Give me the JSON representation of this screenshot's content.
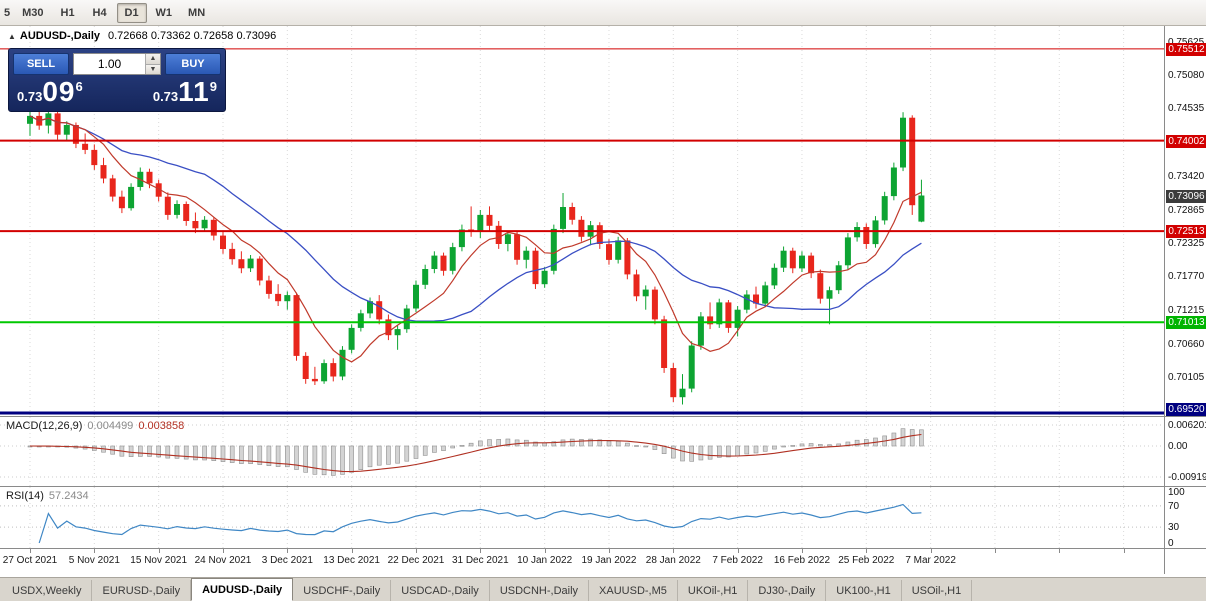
{
  "toolbar": {
    "items": [
      "5",
      "M30",
      "H1",
      "H4",
      "D1",
      "W1",
      "MN"
    ],
    "active": "D1"
  },
  "chart_header": {
    "collapse_icon": "▲",
    "title": "AUDUSD-,Daily",
    "ohlc": "0.72668 0.73362 0.72658 0.73096"
  },
  "icons": {
    "volume_up": "▲",
    "volume_down": "▼"
  },
  "trade_panel": {
    "sell_label": "SELL",
    "buy_label": "BUY",
    "volume": "1.00",
    "sell_price": {
      "small": "0.73",
      "big": "09",
      "sup": "6"
    },
    "buy_price": {
      "small": "0.73",
      "big": "11",
      "sup": "9"
    }
  },
  "price_axis": {
    "ticks": [
      {
        "label": "0.75625",
        "value": 0.75625
      },
      {
        "label": "0.75080",
        "value": 0.7508
      },
      {
        "label": "0.74535",
        "value": 0.74535
      },
      {
        "label": "0.73420",
        "value": 0.7342
      },
      {
        "label": "0.72865",
        "value": 0.72865
      },
      {
        "label": "0.72325",
        "value": 0.72325
      },
      {
        "label": "0.71770",
        "value": 0.7177
      },
      {
        "label": "0.71215",
        "value": 0.71215
      },
      {
        "label": "0.70660",
        "value": 0.7066
      },
      {
        "label": "0.70105",
        "value": 0.70105
      }
    ],
    "badges": [
      {
        "label": "0.75512",
        "value": 0.75512,
        "bg": "#d20000"
      },
      {
        "label": "0.74002",
        "value": 0.74002,
        "bg": "#d20000"
      },
      {
        "label": "0.73096",
        "value": 0.73096,
        "bg": "#3c3c3c"
      },
      {
        "label": "0.72513",
        "value": 0.72513,
        "bg": "#d20000"
      },
      {
        "label": "0.71013",
        "value": 0.71013,
        "bg": "#00b400"
      },
      {
        "label": "0.69520",
        "value": 0.6952,
        "bg": "#000080"
      }
    ]
  },
  "macd": {
    "name": "MACD(12,26,9)",
    "value_main": "0.004499",
    "value_signal": "0.003858",
    "axis": [
      {
        "label": "0.006201",
        "value": 0.006201
      },
      {
        "label": "0.00",
        "value": 0
      },
      {
        "label": "-0.00919",
        "value": -0.00919
      }
    ]
  },
  "rsi": {
    "name": "RSI(14)",
    "value": "57.2434",
    "axis": [
      {
        "label": "100",
        "value": 100
      },
      {
        "label": "70",
        "value": 70
      },
      {
        "label": "30",
        "value": 30
      },
      {
        "label": "0",
        "value": 0
      }
    ],
    "levels": [
      70,
      30
    ]
  },
  "time_axis": {
    "labels": [
      "27 Oct 2021",
      "5 Nov 2021",
      "15 Nov 2021",
      "24 Nov 2021",
      "3 Dec 2021",
      "13 Dec 2021",
      "22 Dec 2021",
      "31 Dec 2021",
      "10 Jan 2022",
      "19 Jan 2022",
      "28 Jan 2022",
      "7 Feb 2022",
      "16 Feb 2022",
      "25 Feb 2022",
      "7 Mar 2022"
    ]
  },
  "tabs": {
    "items": [
      "USDX,Weekly",
      "EURUSD-,Daily",
      "AUDUSD-,Daily",
      "USDCHF-,Daily",
      "USDCAD-,Daily",
      "USDCNH-,Daily",
      "XAUUSD-,M5",
      "UKOil-,H1",
      "DJ30-,Daily",
      "UK100-,H1",
      "USOil-,H1"
    ],
    "active_index": 2
  },
  "chart_data": {
    "type": "candlestick",
    "title": "AUDUSD-,Daily",
    "current_price": 0.73096,
    "current_bar_ohlc": [
      0.72668,
      0.73362,
      0.72658,
      0.73096
    ],
    "visible_price_range": [
      0.6947,
      0.7589
    ],
    "x_labels": [
      "27 Oct 2021",
      "5 Nov 2021",
      "15 Nov 2021",
      "24 Nov 2021",
      "3 Dec 2021",
      "13 Dec 2021",
      "22 Dec 2021",
      "31 Dec 2021",
      "10 Jan 2022",
      "19 Jan 2022",
      "28 Jan 2022",
      "7 Feb 2022",
      "16 Feb 2022",
      "25 Feb 2022",
      "7 Mar 2022"
    ],
    "hlines": [
      {
        "value": 0.75512,
        "color": "#d20000",
        "width": 1
      },
      {
        "value": 0.74002,
        "color": "#d20000",
        "width": 2
      },
      {
        "value": 0.72513,
        "color": "#d20000",
        "width": 2
      },
      {
        "value": 0.71013,
        "color": "#00c800",
        "width": 2
      },
      {
        "value": 0.6952,
        "color": "#000080",
        "width": 3
      }
    ],
    "indicators": {
      "macd_label": "MACD(12,26,9)",
      "macd_current": [
        0.004499,
        0.003858
      ],
      "macd_axis_range": [
        0.006201,
        -0.00919
      ],
      "rsi_label": "RSI(14)",
      "rsi_current": 57.2434
    },
    "candles_ohlc": [
      [
        0.7428,
        0.7448,
        0.7408,
        0.7441
      ],
      [
        0.7441,
        0.7455,
        0.7418,
        0.7425
      ],
      [
        0.7425,
        0.7452,
        0.7412,
        0.7445
      ],
      [
        0.7445,
        0.745,
        0.7402,
        0.741
      ],
      [
        0.741,
        0.7432,
        0.74,
        0.7426
      ],
      [
        0.7426,
        0.743,
        0.7388,
        0.7395
      ],
      [
        0.7395,
        0.7412,
        0.7378,
        0.7385
      ],
      [
        0.7385,
        0.7394,
        0.7352,
        0.736
      ],
      [
        0.736,
        0.7372,
        0.733,
        0.7338
      ],
      [
        0.7338,
        0.7344,
        0.73,
        0.7308
      ],
      [
        0.7308,
        0.7318,
        0.7281,
        0.7289
      ],
      [
        0.7289,
        0.733,
        0.7285,
        0.7324
      ],
      [
        0.7324,
        0.7356,
        0.7318,
        0.7349
      ],
      [
        0.7349,
        0.7354,
        0.7322,
        0.733
      ],
      [
        0.733,
        0.7336,
        0.73,
        0.7308
      ],
      [
        0.7308,
        0.7315,
        0.727,
        0.7278
      ],
      [
        0.7278,
        0.7302,
        0.7272,
        0.7296
      ],
      [
        0.7296,
        0.73,
        0.726,
        0.7268
      ],
      [
        0.7268,
        0.7282,
        0.7248,
        0.7256
      ],
      [
        0.7256,
        0.7276,
        0.725,
        0.727
      ],
      [
        0.727,
        0.7274,
        0.7236,
        0.7244
      ],
      [
        0.7244,
        0.7252,
        0.7214,
        0.7222
      ],
      [
        0.7222,
        0.7232,
        0.7196,
        0.7205
      ],
      [
        0.7205,
        0.7218,
        0.7182,
        0.719
      ],
      [
        0.719,
        0.7212,
        0.7184,
        0.7206
      ],
      [
        0.7206,
        0.721,
        0.7162,
        0.717
      ],
      [
        0.717,
        0.7178,
        0.714,
        0.7148
      ],
      [
        0.7148,
        0.7164,
        0.7128,
        0.7136
      ],
      [
        0.7136,
        0.7152,
        0.7122,
        0.7146
      ],
      [
        0.7146,
        0.715,
        0.7038,
        0.7046
      ],
      [
        0.7046,
        0.7052,
        0.7,
        0.7008
      ],
      [
        0.7008,
        0.7028,
        0.6998,
        0.7004
      ],
      [
        0.7004,
        0.704,
        0.7,
        0.7034
      ],
      [
        0.7034,
        0.7042,
        0.7004,
        0.7012
      ],
      [
        0.7012,
        0.7062,
        0.7006,
        0.7056
      ],
      [
        0.7056,
        0.7098,
        0.705,
        0.7092
      ],
      [
        0.7092,
        0.7122,
        0.7086,
        0.7116
      ],
      [
        0.7116,
        0.7142,
        0.7108,
        0.7136
      ],
      [
        0.7136,
        0.7146,
        0.7098,
        0.7106
      ],
      [
        0.7106,
        0.7114,
        0.7072,
        0.708
      ],
      [
        0.708,
        0.7096,
        0.7056,
        0.709
      ],
      [
        0.709,
        0.713,
        0.7084,
        0.7124
      ],
      [
        0.7124,
        0.717,
        0.7118,
        0.7163
      ],
      [
        0.7163,
        0.7196,
        0.7156,
        0.7189
      ],
      [
        0.7189,
        0.7218,
        0.7182,
        0.7211
      ],
      [
        0.7211,
        0.7216,
        0.7178,
        0.7186
      ],
      [
        0.7186,
        0.7232,
        0.718,
        0.7225
      ],
      [
        0.7225,
        0.7262,
        0.7218,
        0.7254
      ],
      [
        0.7254,
        0.7292,
        0.7242,
        0.7251
      ],
      [
        0.7251,
        0.7286,
        0.724,
        0.7278
      ],
      [
        0.7278,
        0.7292,
        0.7252,
        0.726
      ],
      [
        0.726,
        0.7268,
        0.7222,
        0.723
      ],
      [
        0.723,
        0.7252,
        0.7218,
        0.7246
      ],
      [
        0.7246,
        0.725,
        0.7196,
        0.7204
      ],
      [
        0.7204,
        0.7226,
        0.719,
        0.7219
      ],
      [
        0.7219,
        0.7224,
        0.7156,
        0.7164
      ],
      [
        0.7164,
        0.7192,
        0.7158,
        0.7186
      ],
      [
        0.7186,
        0.7262,
        0.718,
        0.7255
      ],
      [
        0.7255,
        0.7314,
        0.7248,
        0.7291
      ],
      [
        0.7291,
        0.7298,
        0.7262,
        0.727
      ],
      [
        0.727,
        0.7276,
        0.7234,
        0.7242
      ],
      [
        0.7242,
        0.7268,
        0.7228,
        0.7261
      ],
      [
        0.7261,
        0.7266,
        0.7222,
        0.723
      ],
      [
        0.723,
        0.7238,
        0.7196,
        0.7204
      ],
      [
        0.7204,
        0.7242,
        0.7198,
        0.7236
      ],
      [
        0.7236,
        0.724,
        0.7172,
        0.718
      ],
      [
        0.718,
        0.7188,
        0.7136,
        0.7144
      ],
      [
        0.7144,
        0.7162,
        0.7122,
        0.7155
      ],
      [
        0.7155,
        0.716,
        0.7098,
        0.7106
      ],
      [
        0.7106,
        0.7112,
        0.7018,
        0.7026
      ],
      [
        0.7026,
        0.7034,
        0.697,
        0.6978
      ],
      [
        0.6978,
        0.7016,
        0.6966,
        0.6992
      ],
      [
        0.6992,
        0.707,
        0.6986,
        0.7063
      ],
      [
        0.7063,
        0.7118,
        0.7056,
        0.7111
      ],
      [
        0.7111,
        0.7134,
        0.709,
        0.7098
      ],
      [
        0.7098,
        0.714,
        0.7092,
        0.7134
      ],
      [
        0.7134,
        0.7138,
        0.7084,
        0.7092
      ],
      [
        0.7092,
        0.7128,
        0.7078,
        0.7122
      ],
      [
        0.7122,
        0.7154,
        0.7116,
        0.7147
      ],
      [
        0.7147,
        0.716,
        0.7124,
        0.7132
      ],
      [
        0.7132,
        0.7168,
        0.7126,
        0.7162
      ],
      [
        0.7162,
        0.7198,
        0.7156,
        0.7191
      ],
      [
        0.7191,
        0.7226,
        0.7184,
        0.7219
      ],
      [
        0.7219,
        0.7224,
        0.7182,
        0.719
      ],
      [
        0.719,
        0.7218,
        0.7184,
        0.7211
      ],
      [
        0.7211,
        0.7216,
        0.7174,
        0.7182
      ],
      [
        0.7182,
        0.7188,
        0.7132,
        0.714
      ],
      [
        0.714,
        0.716,
        0.7098,
        0.7154
      ],
      [
        0.7154,
        0.7202,
        0.7148,
        0.7195
      ],
      [
        0.7195,
        0.7248,
        0.7188,
        0.7241
      ],
      [
        0.7241,
        0.7266,
        0.7234,
        0.7258
      ],
      [
        0.7258,
        0.7264,
        0.7222,
        0.723
      ],
      [
        0.723,
        0.7276,
        0.7224,
        0.7269
      ],
      [
        0.7269,
        0.7316,
        0.7262,
        0.7309
      ],
      [
        0.7309,
        0.7364,
        0.7302,
        0.7356
      ],
      [
        0.7356,
        0.7447,
        0.735,
        0.7438
      ],
      [
        0.7438,
        0.7442,
        0.7278,
        0.7294
      ],
      [
        0.7267,
        0.7336,
        0.7266,
        0.731
      ]
    ]
  }
}
